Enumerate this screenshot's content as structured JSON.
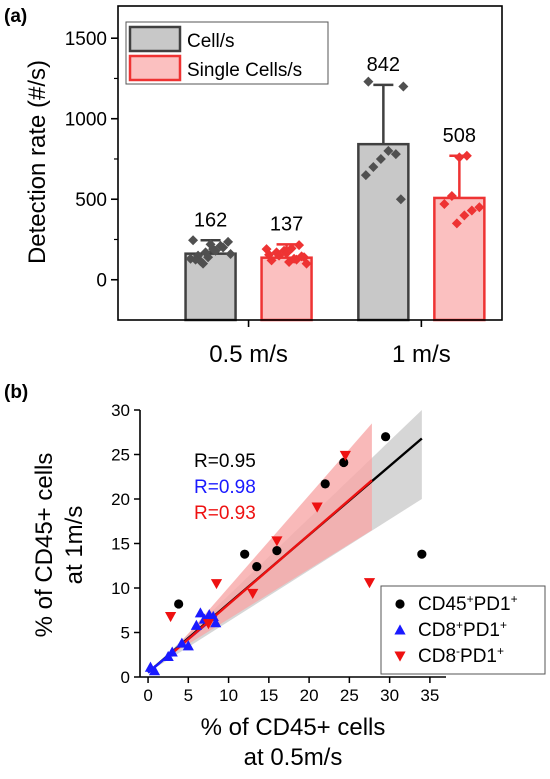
{
  "chart_data": [
    {
      "type": "bar",
      "panel_label": "(a)",
      "categories": [
        "0.5 m/s",
        "1 m/s"
      ],
      "ylabel": "Detection rate (#/s)",
      "ylim": [
        -250,
        1700
      ],
      "yticks": [
        0,
        500,
        1000,
        1500
      ],
      "legend_position": "top-left",
      "series": [
        {
          "name": "Cell/s",
          "fill": "#c8c8c8",
          "stroke": "#404040",
          "point_color": "#505050",
          "values": [
            162,
            842
          ],
          "value_labels": [
            "162",
            "842"
          ],
          "error_high": [
            245,
            1210
          ],
          "points": [
            [
              130,
              150,
              170,
              190,
              210,
              235,
              245,
              115,
              140,
              180,
              200,
              160,
              125,
              100,
              220
            ],
            [
              500,
              650,
              700,
              750,
              800,
              780,
              1200,
              1230
            ]
          ]
        },
        {
          "name": "Single Cells/s",
          "fill": "#fbc0c0",
          "stroke": "#ee3333",
          "point_color": "#ee3333",
          "values": [
            137,
            508
          ],
          "value_labels": [
            "137",
            "508"
          ],
          "error_high": [
            220,
            770
          ],
          "points": [
            [
              110,
              125,
              140,
              155,
              170,
              180,
              195,
              215,
              100,
              120,
              150,
              165,
              130,
              145,
              190
            ],
            [
              350,
              400,
              430,
              450,
              470,
              520,
              760,
              770
            ]
          ]
        }
      ]
    },
    {
      "type": "scatter",
      "panel_label": "(b)",
      "xlabel_lines": [
        "% of CD45+ cells",
        "at 0.5m/s"
      ],
      "ylabel_lines": [
        "% of CD45+ cells",
        "at 1m/s"
      ],
      "xlim": [
        -1,
        37
      ],
      "ylim": [
        0,
        30
      ],
      "xticks": [
        0,
        5,
        10,
        15,
        20,
        25,
        30,
        35
      ],
      "yticks": [
        0,
        5,
        10,
        15,
        20,
        25,
        30
      ],
      "legend_position": "bottom-right",
      "correlations": [
        {
          "text": "R=0.95",
          "color": "#000000"
        },
        {
          "text": "R=0.98",
          "color": "#1a1aff"
        },
        {
          "text": "R=0.93",
          "color": "#ee1111"
        }
      ],
      "series": [
        {
          "name": "CD45",
          "sup1": "+",
          "name2": "PD1",
          "sup2": "+",
          "marker": "circle",
          "color": "#000000",
          "points": [
            [
              3.8,
              8.2
            ],
            [
              12,
              13.8
            ],
            [
              13.5,
              12.4
            ],
            [
              16,
              14.2
            ],
            [
              22,
              21.7
            ],
            [
              24.3,
              24.1
            ],
            [
              29.5,
              27
            ],
            [
              34,
              13.8
            ]
          ],
          "fit": {
            "x0": 0,
            "y0": 0.5,
            "x1": 34,
            "y1": 26.8
          },
          "band_color": "#c8c8c8",
          "band_x": [
            0,
            34
          ],
          "band_lower": [
            0.5,
            20
          ],
          "band_upper": [
            0.5,
            30
          ]
        },
        {
          "name": "CD8",
          "sup1": "+",
          "name2": "PD1",
          "sup2": "+",
          "marker": "triangle-up",
          "color": "#1a1aff",
          "points": [
            [
              0.3,
              1.1
            ],
            [
              0.8,
              0.7
            ],
            [
              2.5,
              2.3
            ],
            [
              3,
              2.8
            ],
            [
              4.2,
              3.8
            ],
            [
              5,
              3.5
            ],
            [
              6,
              5.8
            ],
            [
              6.5,
              7.2
            ],
            [
              7,
              6.5
            ],
            [
              7.6,
              7
            ],
            [
              8.1,
              6.8
            ],
            [
              8.4,
              6.1
            ]
          ],
          "fit": {
            "x0": 0,
            "y0": 0.5,
            "x1": 8.5,
            "y1": 6.9
          }
        },
        {
          "name": "CD8",
          "sup1": "-",
          "name2": "PD1",
          "sup2": "+",
          "marker": "triangle-down",
          "color": "#ee1111",
          "points": [
            [
              2.8,
              6.8
            ],
            [
              7.5,
              6
            ],
            [
              8.5,
              10.5
            ],
            [
              13,
              9.4
            ],
            [
              16,
              15.3
            ],
            [
              21,
              19.1
            ],
            [
              24.5,
              24.9
            ],
            [
              27.5,
              10.6
            ]
          ],
          "fit": {
            "x0": 2.5,
            "y0": 2.3,
            "x1": 27.8,
            "y1": 22.1
          },
          "band_color": "#f7a8a8",
          "band_x": [
            2.5,
            27.8
          ],
          "band_lower": [
            2.3,
            16.5
          ],
          "band_upper": [
            2.3,
            28.5
          ]
        }
      ]
    }
  ]
}
